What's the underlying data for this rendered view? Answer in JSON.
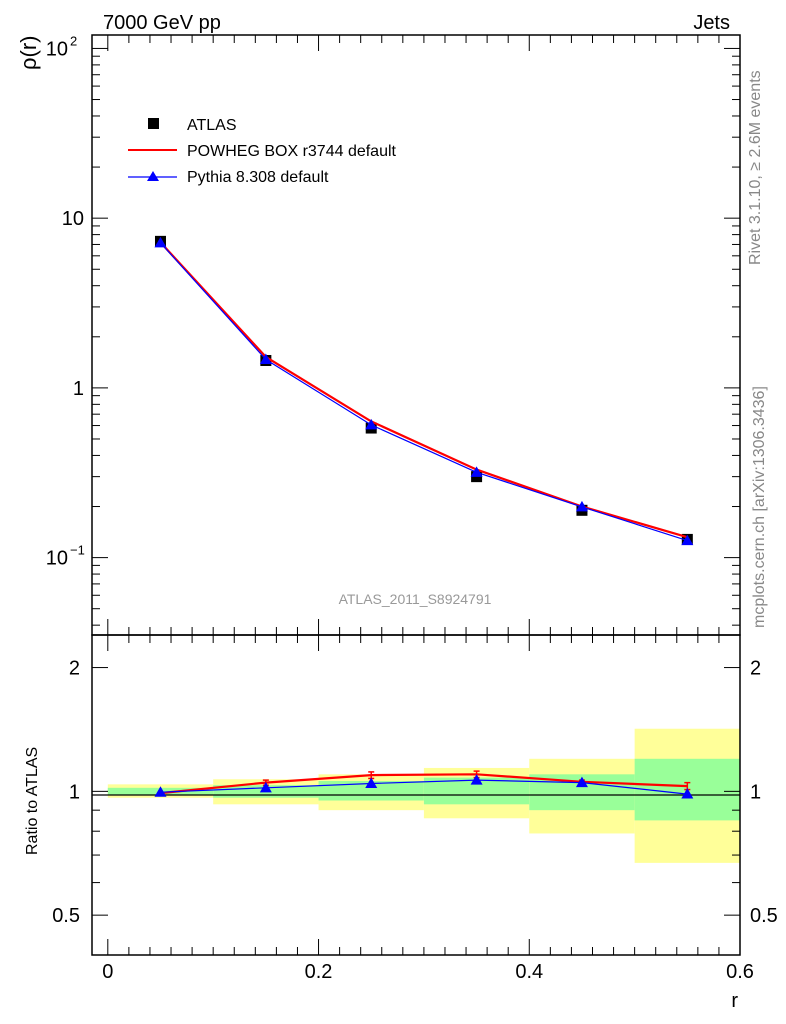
{
  "header": {
    "energy_label": "7000 GeV pp",
    "process_label": "Jets",
    "rivet_label": "Rivet 3.1.10, ≥ 2.6M events",
    "source_label": "mcplots.cern.ch [arXiv:1306.3436]",
    "analysis_label": "ATLAS_2011_S8924791"
  },
  "legend": {
    "atlas_label": "ATLAS",
    "powheg_label": "POWHEG BOX r3744 default",
    "pythia_label": "Pythia 8.308 default"
  },
  "colors": {
    "atlas": "#000000",
    "powheg": "#ff0000",
    "pythia": "#0000ff",
    "band_inner": "#99ff99",
    "band_outer": "#ffff99"
  },
  "chart_data": [
    {
      "type": "line",
      "panel": "main",
      "ylabel": "ρ(r)",
      "yscale": "log",
      "ylim": [
        0.035,
        120
      ],
      "xlim": [
        -0.015,
        0.6
      ],
      "yticks": [
        {
          "value": 100,
          "label": "10",
          "exp": "2"
        },
        {
          "value": 10,
          "label": "10",
          "exp": ""
        },
        {
          "value": 1,
          "label": "1",
          "exp": ""
        },
        {
          "value": 0.1,
          "label": "10",
          "exp": "−1"
        }
      ],
      "legend_position": "top-left",
      "x": [
        0.05,
        0.15,
        0.25,
        0.35,
        0.45,
        0.55
      ],
      "series": [
        {
          "name": "ATLAS",
          "marker": "square",
          "values": [
            7.3,
            1.45,
            0.58,
            0.3,
            0.19,
            0.128
          ]
        },
        {
          "name": "POWHEG BOX r3744 default",
          "marker": "none",
          "values": [
            7.2,
            1.52,
            0.635,
            0.33,
            0.2,
            0.132
          ]
        },
        {
          "name": "Pythia 8.308 default",
          "marker": "triangle",
          "values": [
            7.15,
            1.47,
            0.605,
            0.318,
            0.199,
            0.126
          ]
        }
      ]
    },
    {
      "type": "line",
      "panel": "ratio",
      "xlabel": "r",
      "ylabel": "Ratio to ATLAS",
      "yscale": "log",
      "ylim": [
        0.4,
        2.4
      ],
      "xlim": [
        -0.015,
        0.6
      ],
      "xticks": [
        0,
        0.2,
        0.4,
        0.6
      ],
      "xtick_labels": [
        "0",
        "0.2",
        "0.4",
        "0.6"
      ],
      "yticks": [
        0.5,
        1,
        2
      ],
      "ytick_labels": [
        "0.5",
        "1",
        "2"
      ],
      "x": [
        0.05,
        0.15,
        0.25,
        0.35,
        0.45,
        0.55
      ],
      "bins": [
        [
          0,
          0.1
        ],
        [
          0.1,
          0.2
        ],
        [
          0.2,
          0.3
        ],
        [
          0.3,
          0.4
        ],
        [
          0.4,
          0.5
        ],
        [
          0.5,
          0.6
        ]
      ],
      "band_inner": [
        [
          0.98,
          1.02
        ],
        [
          0.965,
          1.035
        ],
        [
          0.95,
          1.06
        ],
        [
          0.93,
          1.08
        ],
        [
          0.9,
          1.1
        ],
        [
          0.85,
          1.2
        ]
      ],
      "band_outer": [
        [
          0.965,
          1.04
        ],
        [
          0.93,
          1.07
        ],
        [
          0.9,
          1.1
        ],
        [
          0.86,
          1.14
        ],
        [
          0.79,
          1.2
        ],
        [
          0.67,
          1.42
        ]
      ],
      "series": [
        {
          "name": "POWHEG BOX r3744 default",
          "values": [
            0.99,
            1.05,
            1.095,
            1.1,
            1.055,
            1.03
          ],
          "errors": [
            0.004,
            0.015,
            0.02,
            0.02,
            0.01,
            0.02
          ]
        },
        {
          "name": "Pythia 8.308 default",
          "values": [
            0.995,
            1.02,
            1.045,
            1.065,
            1.05,
            0.985
          ]
        }
      ]
    }
  ]
}
